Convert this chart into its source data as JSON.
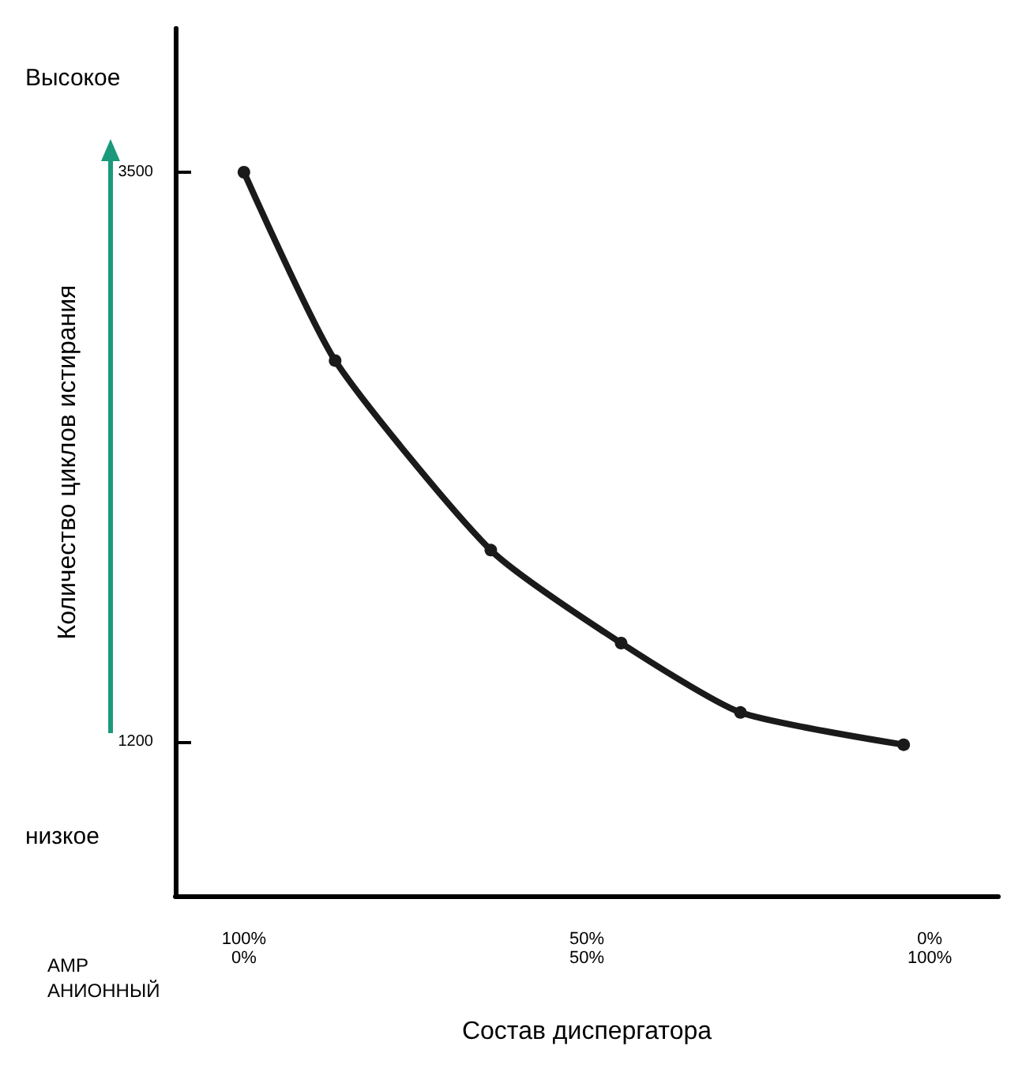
{
  "chart_data": {
    "type": "line",
    "xlabel": "Состав диспергатора",
    "ylabel": "Количество циклов истирания",
    "x": [
      100,
      86.7,
      64,
      45,
      27.6,
      3.8
    ],
    "series": [
      {
        "color": "#1a1a1a",
        "values": [
          3500,
          2740,
          1975,
          1600,
          1320,
          1190
        ]
      }
    ],
    "xlim": [
      110,
      -10
    ],
    "xticks": [
      {
        "value": 100,
        "label": "100%"
      },
      {
        "value": 50,
        "label": "50%"
      },
      {
        "value": 0,
        "label": "0%"
      }
    ],
    "x2lim": [
      -10,
      110
    ],
    "x2ticks": [
      {
        "value": 0,
        "label": "0%"
      },
      {
        "value": 50,
        "label": "50%"
      },
      {
        "value": 100,
        "label": "100%"
      }
    ],
    "ylim": [
      580,
      4080
    ],
    "yticks": [
      1200,
      3500
    ],
    "annotations": [
      "Высокое",
      "низкое",
      "AMP",
      "АНИОННЫЙ"
    ],
    "marker": "circle",
    "line_style": "solid",
    "grid": false
  }
}
